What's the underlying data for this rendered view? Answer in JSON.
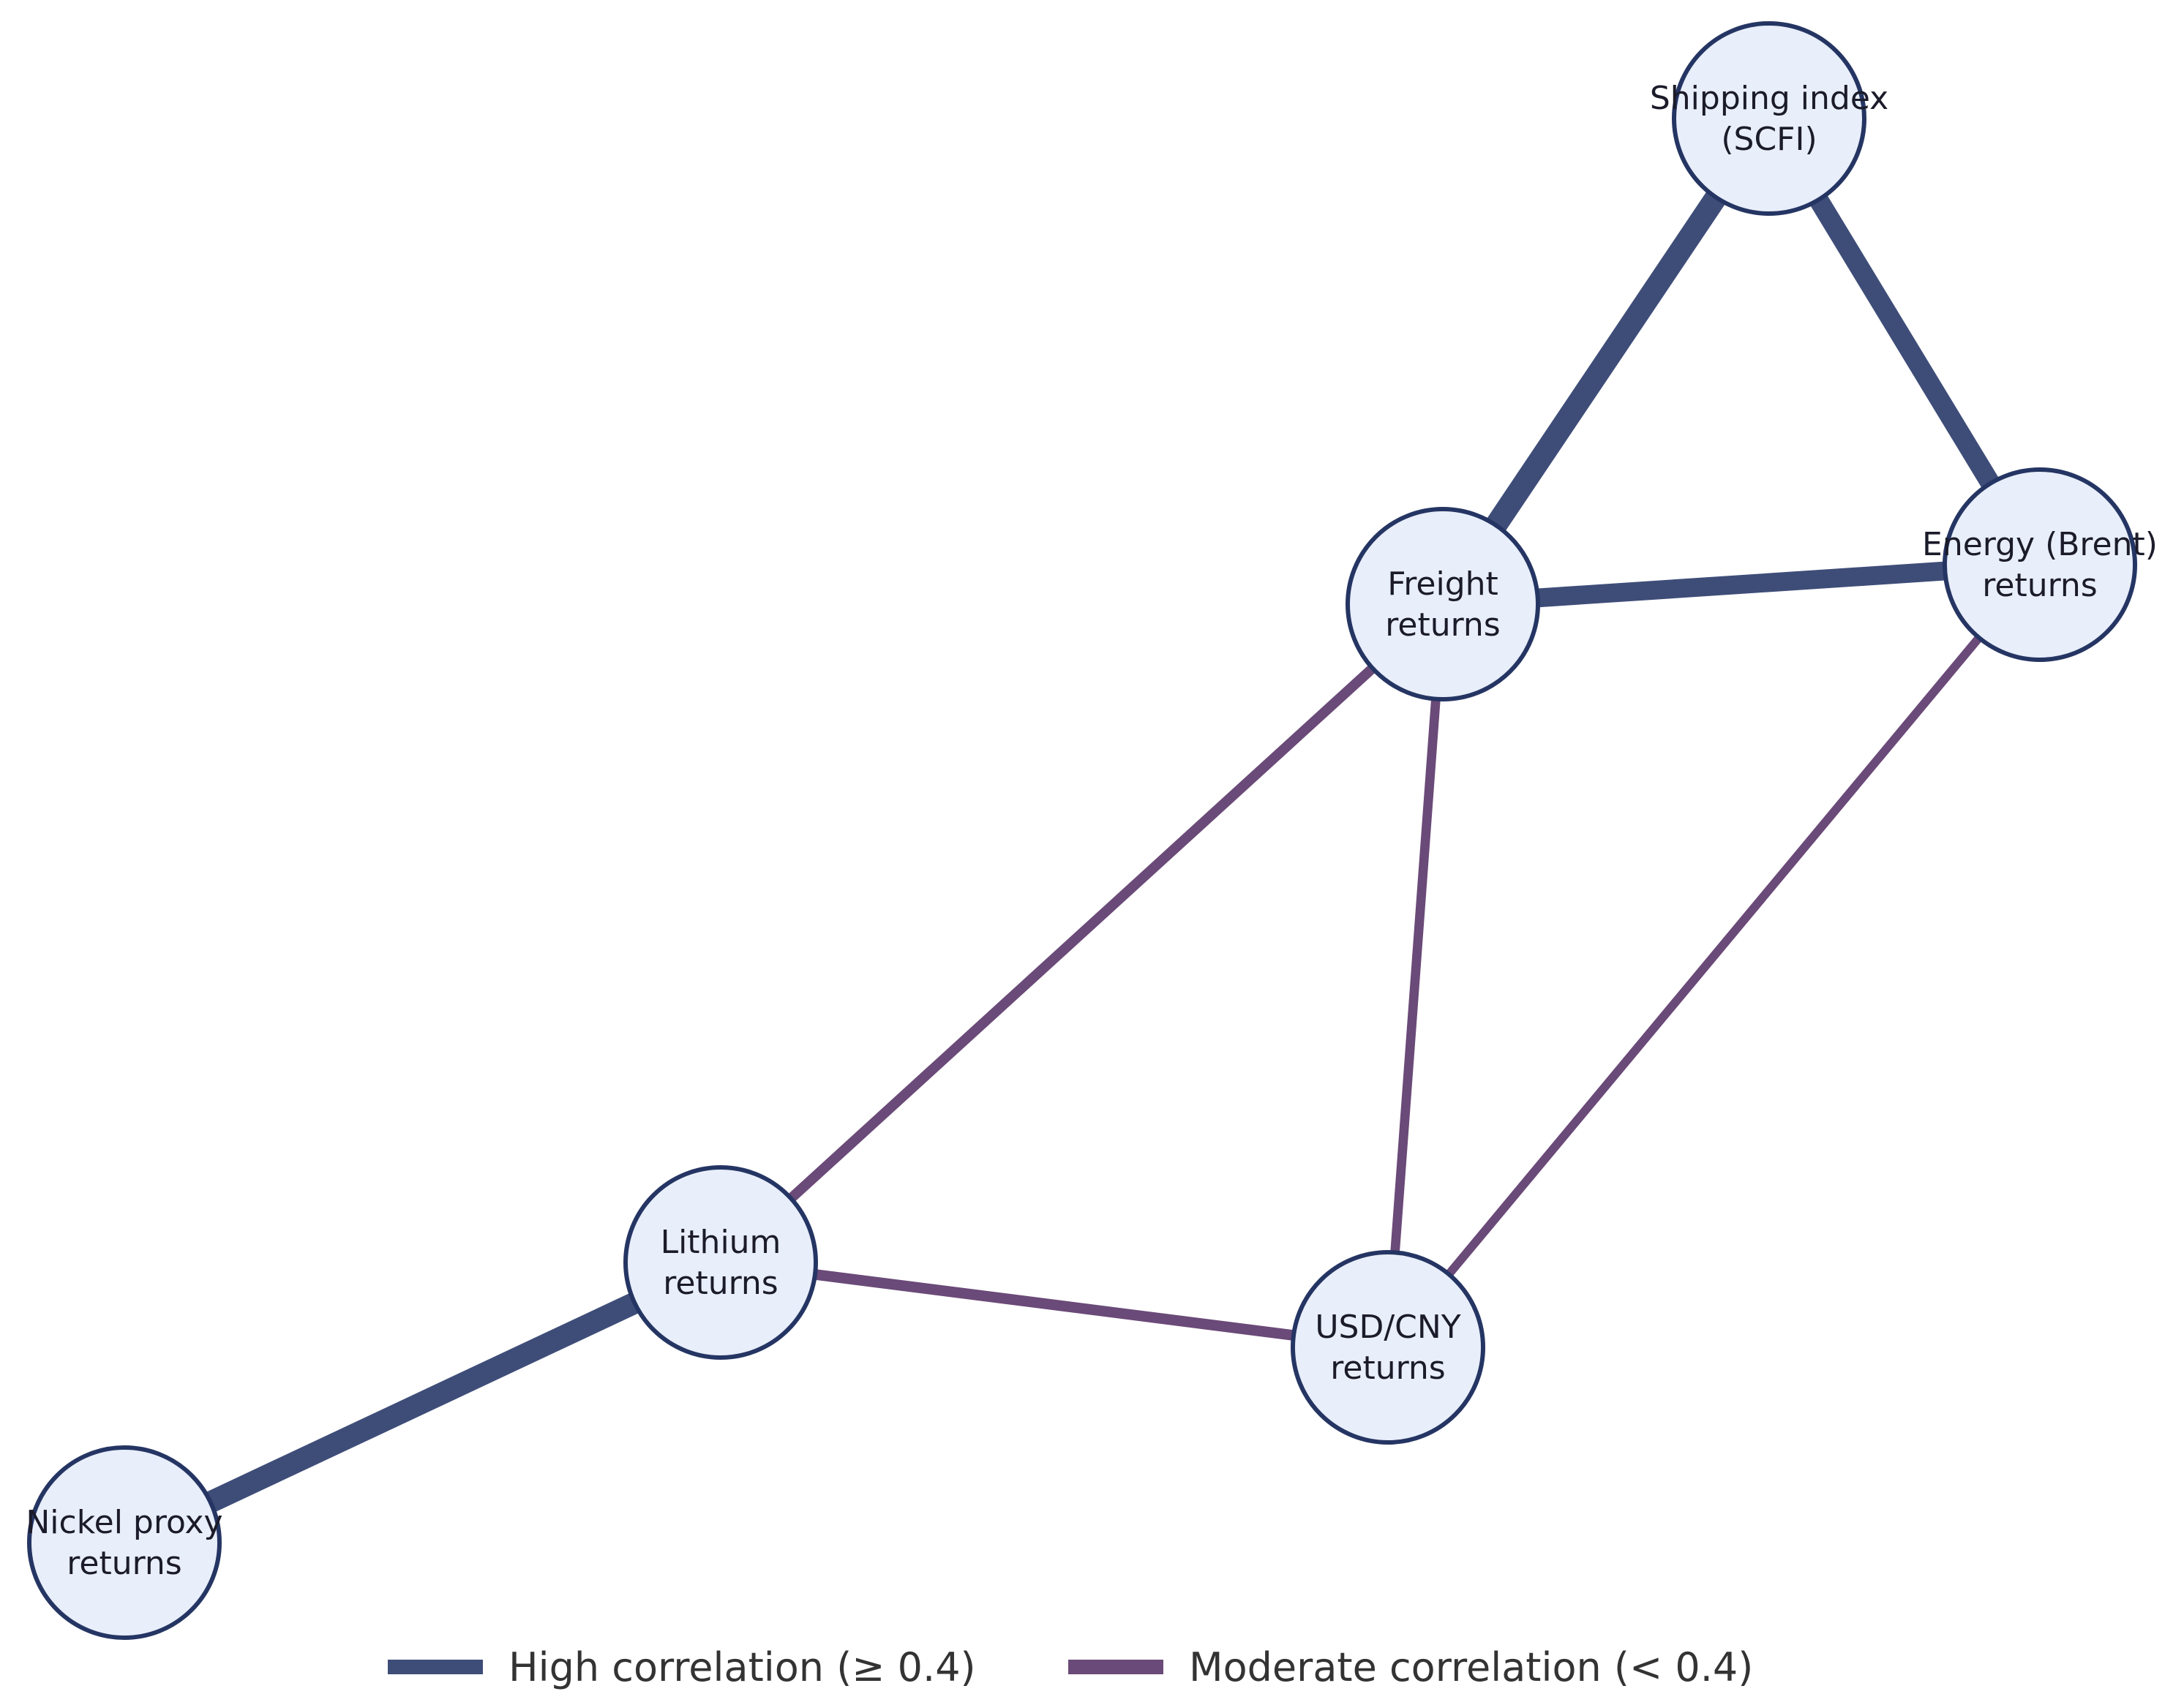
{
  "colors": {
    "high": "#3e4d78",
    "moderate": "#6a4a78",
    "node_fill": "#e8eefa",
    "node_stroke": "#253563",
    "background": "#ffffff"
  },
  "nodes": [
    {
      "id": "scfi",
      "lines": [
        "Shipping index",
        "(SCFI)"
      ]
    },
    {
      "id": "brent",
      "lines": [
        "Energy (Brent)",
        "returns"
      ]
    },
    {
      "id": "freight",
      "lines": [
        "Freight",
        "returns"
      ]
    },
    {
      "id": "lithium",
      "lines": [
        "Lithium",
        "returns"
      ]
    },
    {
      "id": "usdcny",
      "lines": [
        "USD/CNY",
        "returns"
      ]
    },
    {
      "id": "nickel",
      "lines": [
        "Nickel proxy",
        "returns"
      ]
    }
  ],
  "edges": [
    {
      "source": "scfi",
      "target": "freight",
      "group": "high",
      "strength": 0.62
    },
    {
      "source": "scfi",
      "target": "brent",
      "group": "high",
      "strength": 0.5
    },
    {
      "source": "freight",
      "target": "brent",
      "group": "high",
      "strength": 0.46
    },
    {
      "source": "lithium",
      "target": "nickel",
      "group": "high",
      "strength": 0.6
    },
    {
      "source": "freight",
      "target": "lithium",
      "group": "moderate",
      "strength": 0.33
    },
    {
      "source": "lithium",
      "target": "usdcny",
      "group": "moderate",
      "strength": 0.36
    },
    {
      "source": "freight",
      "target": "usdcny",
      "group": "moderate",
      "strength": 0.28
    },
    {
      "source": "brent",
      "target": "usdcny",
      "group": "moderate",
      "strength": 0.24
    }
  ],
  "legend": {
    "high_label": "High correlation (≥ 0.4)",
    "moderate_label": "Moderate correlation (< 0.4)"
  }
}
